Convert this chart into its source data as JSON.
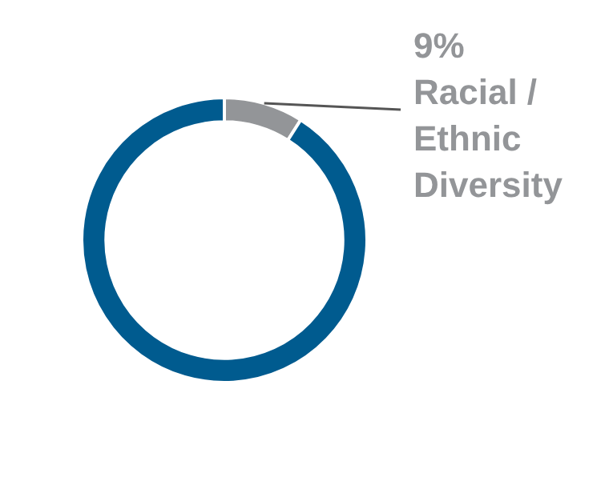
{
  "chart_data": {
    "type": "donut",
    "categories": [
      "Racial / Ethnic Diversity",
      null
    ],
    "values": [
      9,
      91
    ],
    "colors": [
      "#939598",
      "#005b8f"
    ],
    "value_labels": [
      "9%",
      null
    ],
    "legend": false
  }
}
